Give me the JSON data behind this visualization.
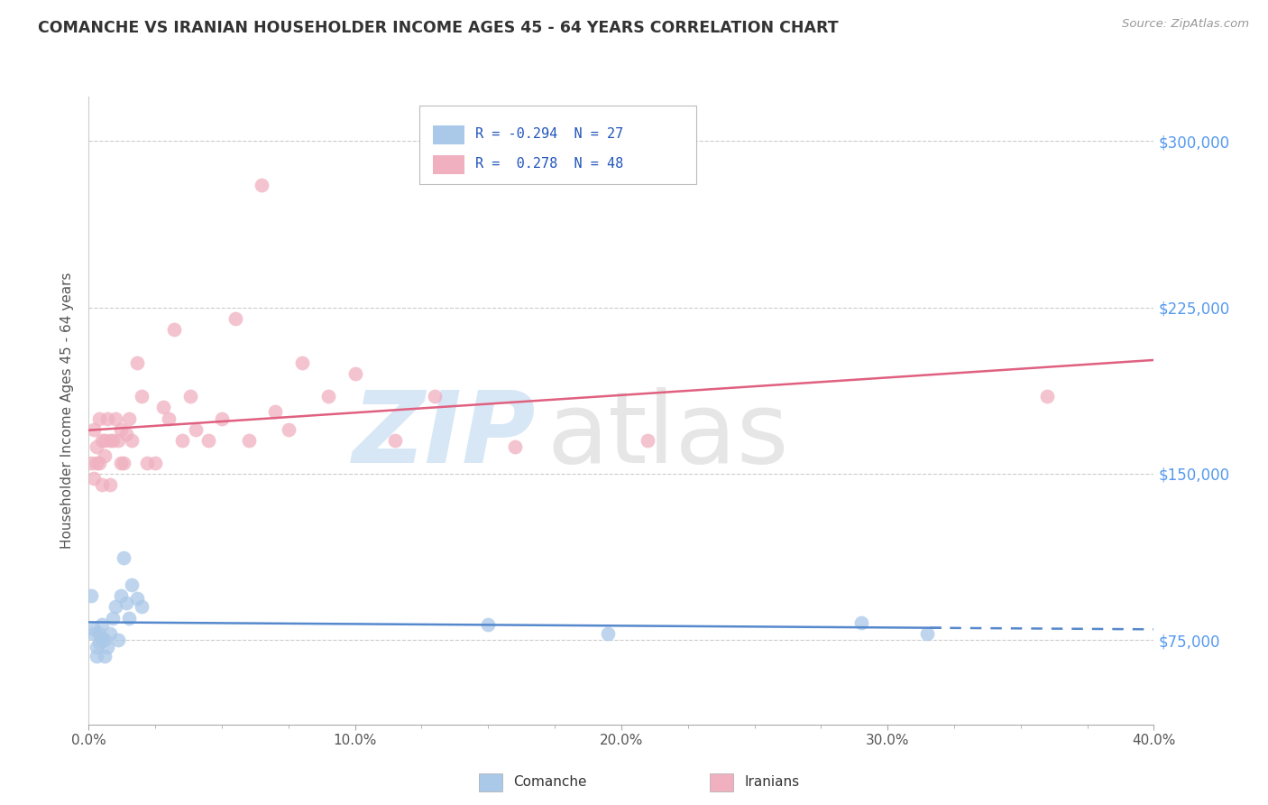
{
  "title": "COMANCHE VS IRANIAN HOUSEHOLDER INCOME AGES 45 - 64 YEARS CORRELATION CHART",
  "source": "Source: ZipAtlas.com",
  "ylabel": "Householder Income Ages 45 - 64 years",
  "xlim": [
    0.0,
    0.4
  ],
  "ylim": [
    37000,
    320000
  ],
  "xtick_labels": [
    "0.0%",
    "",
    "",
    "",
    "10.0%",
    "",
    "",
    "",
    "20.0%",
    "",
    "",
    "",
    "30.0%",
    "",
    "",
    "",
    "40.0%"
  ],
  "xtick_values": [
    0.0,
    0.025,
    0.05,
    0.075,
    0.1,
    0.125,
    0.15,
    0.175,
    0.2,
    0.225,
    0.25,
    0.275,
    0.3,
    0.325,
    0.35,
    0.375,
    0.4
  ],
  "xtick_major_labels": [
    "0.0%",
    "10.0%",
    "20.0%",
    "30.0%",
    "40.0%"
  ],
  "xtick_major_values": [
    0.0,
    0.1,
    0.2,
    0.3,
    0.4
  ],
  "ytick_labels": [
    "$75,000",
    "$150,000",
    "$225,000",
    "$300,000"
  ],
  "ytick_values": [
    75000,
    150000,
    225000,
    300000
  ],
  "comanche_color": "#aac8e8",
  "iranian_color": "#f0b0c0",
  "comanche_line_color": "#5588cc",
  "iranian_line_color": "#e06080",
  "background_color": "#ffffff",
  "grid_color": "#cccccc",
  "comanche_x": [
    0.001,
    0.002,
    0.002,
    0.003,
    0.003,
    0.004,
    0.004,
    0.005,
    0.005,
    0.006,
    0.006,
    0.007,
    0.008,
    0.009,
    0.01,
    0.011,
    0.012,
    0.013,
    0.014,
    0.015,
    0.016,
    0.018,
    0.02,
    0.15,
    0.195,
    0.29,
    0.315
  ],
  "comanche_y": [
    95000,
    80000,
    78000,
    72000,
    68000,
    78000,
    74000,
    82000,
    76000,
    75000,
    68000,
    72000,
    78000,
    85000,
    90000,
    75000,
    95000,
    112000,
    92000,
    85000,
    100000,
    94000,
    90000,
    82000,
    78000,
    83000,
    78000
  ],
  "iranian_x": [
    0.001,
    0.002,
    0.002,
    0.003,
    0.003,
    0.004,
    0.004,
    0.005,
    0.005,
    0.006,
    0.006,
    0.007,
    0.008,
    0.008,
    0.009,
    0.01,
    0.011,
    0.012,
    0.012,
    0.013,
    0.014,
    0.015,
    0.016,
    0.018,
    0.02,
    0.022,
    0.025,
    0.028,
    0.03,
    0.032,
    0.035,
    0.038,
    0.04,
    0.045,
    0.05,
    0.055,
    0.06,
    0.065,
    0.07,
    0.075,
    0.08,
    0.09,
    0.1,
    0.115,
    0.13,
    0.16,
    0.21,
    0.36
  ],
  "iranian_y": [
    155000,
    170000,
    148000,
    162000,
    155000,
    175000,
    155000,
    165000,
    145000,
    165000,
    158000,
    175000,
    165000,
    145000,
    165000,
    175000,
    165000,
    155000,
    170000,
    155000,
    168000,
    175000,
    165000,
    200000,
    185000,
    155000,
    155000,
    180000,
    175000,
    215000,
    165000,
    185000,
    170000,
    165000,
    175000,
    220000,
    165000,
    280000,
    178000,
    170000,
    200000,
    185000,
    195000,
    165000,
    185000,
    162000,
    165000,
    185000
  ]
}
